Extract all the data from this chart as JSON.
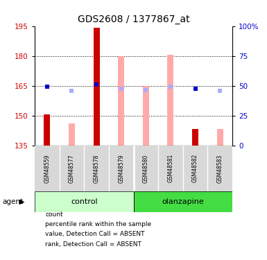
{
  "title": "GDS2608 / 1377867_at",
  "samples": [
    "GSM48559",
    "GSM48577",
    "GSM48578",
    "GSM48579",
    "GSM48580",
    "GSM48581",
    "GSM48582",
    "GSM48583"
  ],
  "groups": {
    "control": [
      0,
      1,
      2,
      3
    ],
    "olanzapine": [
      4,
      5,
      6,
      7
    ]
  },
  "ylim_left": [
    135,
    195
  ],
  "ylim_right": [
    0,
    100
  ],
  "yticks_left": [
    135,
    150,
    165,
    180,
    195
  ],
  "yticks_right": [
    0,
    25,
    50,
    75,
    100
  ],
  "ytick_labels_right": [
    "0",
    "25",
    "50",
    "75",
    "100%"
  ],
  "count_values": [
    150.5,
    null,
    194.0,
    null,
    null,
    null,
    143.5,
    null
  ],
  "percentile_values": [
    164.5,
    null,
    165.5,
    null,
    null,
    null,
    163.5,
    null
  ],
  "absent_value_bars": [
    null,
    146.0,
    null,
    180.0,
    165.0,
    180.5,
    null,
    143.5
  ],
  "absent_rank_markers": [
    null,
    162.5,
    null,
    163.5,
    163.0,
    164.5,
    163.5,
    162.5
  ],
  "bar_bottom": 135,
  "bar_width": 0.25,
  "count_color": "#cc0000",
  "percentile_color": "#0000cc",
  "absent_value_color": "#ffaaaa",
  "absent_rank_color": "#aaaaff",
  "control_color_light": "#ccffcc",
  "olanzapine_color": "#44dd44",
  "grid_color": "#000000",
  "tick_label_color_left": "#cc0000",
  "tick_label_color_right": "#0000cc",
  "legend_items": [
    {
      "color": "#cc0000",
      "label": "count"
    },
    {
      "color": "#0000cc",
      "label": "percentile rank within the sample"
    },
    {
      "color": "#ffaaaa",
      "label": "value, Detection Call = ABSENT"
    },
    {
      "color": "#aaaaff",
      "label": "rank, Detection Call = ABSENT"
    }
  ]
}
